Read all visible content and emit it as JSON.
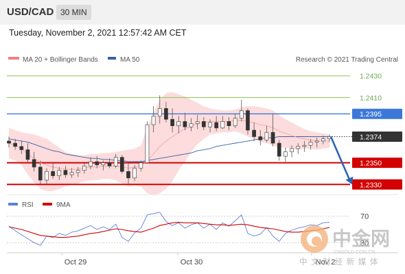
{
  "header": {
    "pair": "USD/CAD",
    "timeframe": "30 MIN"
  },
  "datetime": "Tuesday, November 2, 2021 12:57:42 AM CET",
  "legend": {
    "ma20_bb": {
      "label": "MA 20 + Bollinger Bands",
      "color": "#f08080"
    },
    "ma50": {
      "label": "MA 50",
      "color": "#3b5fa8"
    },
    "source": "Research © 2021 Trading Central"
  },
  "watermark": {
    "text": "中金网",
    "sub": "CNGOLD.COM.CN",
    "tagline": "中 文 财 经 新 媒 体"
  },
  "chart_data": [
    {
      "type": "candlestick",
      "ylim": [
        1.2322,
        1.2438
      ],
      "current_price": 1.2374,
      "levels": [
        {
          "label": "1.2430",
          "value": 1.243,
          "role": "target",
          "color": "#8bc34a",
          "style": "thin"
        },
        {
          "label": "1.2410",
          "value": 1.241,
          "role": "target",
          "color": "#8bc34a",
          "style": "thin"
        },
        {
          "label": "1.2395",
          "value": 1.2395,
          "role": "pivot",
          "color": "#3c78d8",
          "style": "medium"
        },
        {
          "label": "1.2374",
          "value": 1.2374,
          "role": "last",
          "color": "#333333",
          "style": "dotted"
        },
        {
          "label": "1.2350",
          "value": 1.235,
          "role": "support",
          "color": "#d20000",
          "style": "thick"
        },
        {
          "label": "1.2330",
          "value": 1.233,
          "role": "support",
          "color": "#d20000",
          "style": "thick"
        }
      ],
      "x_labels": [
        "Oct 29",
        "Oct 30",
        "Nov 2"
      ],
      "candles": [
        [
          1.237,
          1.2374,
          1.2364,
          1.2368
        ],
        [
          1.2368,
          1.2372,
          1.2362,
          1.2365
        ],
        [
          1.2365,
          1.237,
          1.2358,
          1.2362
        ],
        [
          1.2362,
          1.2368,
          1.235,
          1.2353
        ],
        [
          1.2353,
          1.236,
          1.2342,
          1.2346
        ],
        [
          1.2346,
          1.2352,
          1.233,
          1.2334
        ],
        [
          1.2334,
          1.2345,
          1.233,
          1.2342
        ],
        [
          1.2342,
          1.235,
          1.2335,
          1.2338
        ],
        [
          1.2338,
          1.2346,
          1.2334,
          1.2343
        ],
        [
          1.2343,
          1.2347,
          1.2336,
          1.2339
        ],
        [
          1.2339,
          1.2345,
          1.2336,
          1.2341
        ],
        [
          1.2341,
          1.2346,
          1.2337,
          1.2343
        ],
        [
          1.2343,
          1.235,
          1.234,
          1.2347
        ],
        [
          1.2347,
          1.2355,
          1.2344,
          1.2351
        ],
        [
          1.2351,
          1.2356,
          1.2345,
          1.2348
        ],
        [
          1.2348,
          1.2352,
          1.2343,
          1.235
        ],
        [
          1.235,
          1.2354,
          1.2345,
          1.2347
        ],
        [
          1.2347,
          1.2358,
          1.2345,
          1.2355
        ],
        [
          1.2355,
          1.2357,
          1.234,
          1.2342
        ],
        [
          1.2342,
          1.235,
          1.233,
          1.2336
        ],
        [
          1.2336,
          1.2348,
          1.2333,
          1.2345
        ],
        [
          1.2345,
          1.2352,
          1.2342,
          1.235
        ],
        [
          1.235,
          1.2388,
          1.235,
          1.2385
        ],
        [
          1.2385,
          1.2402,
          1.2378,
          1.2393
        ],
        [
          1.2393,
          1.2412,
          1.2386,
          1.24
        ],
        [
          1.24,
          1.2406,
          1.2387,
          1.239
        ],
        [
          1.239,
          1.24,
          1.2378,
          1.2384
        ],
        [
          1.2384,
          1.2393,
          1.2377,
          1.2388
        ],
        [
          1.2388,
          1.2396,
          1.238,
          1.2383
        ],
        [
          1.2383,
          1.2391,
          1.2379,
          1.2386
        ],
        [
          1.2386,
          1.2394,
          1.2381,
          1.2388
        ],
        [
          1.2388,
          1.2392,
          1.238,
          1.2383
        ],
        [
          1.2383,
          1.239,
          1.2378,
          1.2387
        ],
        [
          1.2387,
          1.2393,
          1.2379,
          1.2382
        ],
        [
          1.2382,
          1.2393,
          1.2381,
          1.2388
        ],
        [
          1.2388,
          1.2392,
          1.238,
          1.2384
        ],
        [
          1.2384,
          1.2395,
          1.2382,
          1.2391
        ],
        [
          1.2391,
          1.2408,
          1.2388,
          1.2398
        ],
        [
          1.2398,
          1.24,
          1.2376,
          1.238
        ],
        [
          1.238,
          1.2387,
          1.237,
          1.2374
        ],
        [
          1.2374,
          1.238,
          1.2366,
          1.2371
        ],
        [
          1.2371,
          1.2384,
          1.2369,
          1.2378
        ],
        [
          1.2378,
          1.2395,
          1.2365,
          1.2368
        ],
        [
          1.2368,
          1.2371,
          1.2352,
          1.2356
        ],
        [
          1.2356,
          1.2364,
          1.2351,
          1.236
        ],
        [
          1.236,
          1.2366,
          1.2355,
          1.2363
        ],
        [
          1.2363,
          1.2368,
          1.2358,
          1.2365
        ],
        [
          1.2365,
          1.237,
          1.236,
          1.2366
        ],
        [
          1.2366,
          1.2372,
          1.2362,
          1.2369
        ],
        [
          1.2369,
          1.2373,
          1.2364,
          1.237
        ],
        [
          1.237,
          1.2375,
          1.2367,
          1.2372
        ],
        [
          1.2372,
          1.2376,
          1.2369,
          1.2374
        ]
      ],
      "ma20": [
        1.2368,
        1.2366,
        1.2363,
        1.2358,
        1.2354,
        1.235,
        1.2348,
        1.2346,
        1.2345,
        1.2344,
        1.2344,
        1.2344,
        1.2345,
        1.2346,
        1.2346,
        1.2347,
        1.2347,
        1.2347,
        1.2346,
        1.2345,
        1.2346,
        1.2347,
        1.2352,
        1.2358,
        1.2365,
        1.237,
        1.2374,
        1.2378,
        1.2381,
        1.2384,
        1.2386,
        1.2387,
        1.2388,
        1.2388,
        1.2388,
        1.2388,
        1.2389,
        1.2389,
        1.2388,
        1.2387,
        1.2385,
        1.2384,
        1.2382,
        1.2379,
        1.2377,
        1.2375,
        1.2373,
        1.2372,
        1.2371,
        1.237,
        1.237,
        1.237
      ],
      "bb_upper": [
        1.2382,
        1.238,
        1.2378,
        1.2377,
        1.2376,
        1.2374,
        1.2372,
        1.2368,
        1.2364,
        1.236,
        1.2358,
        1.2357,
        1.2357,
        1.2358,
        1.2358,
        1.2359,
        1.2359,
        1.236,
        1.2361,
        1.2362,
        1.2363,
        1.2366,
        1.2382,
        1.2396,
        1.2408,
        1.2414,
        1.2415,
        1.2413,
        1.2411,
        1.2408,
        1.2405,
        1.2402,
        1.24,
        1.2399,
        1.2398,
        1.2398,
        1.2399,
        1.2401,
        1.2402,
        1.2402,
        1.2401,
        1.24,
        1.2398,
        1.2394,
        1.239,
        1.2387,
        1.2384,
        1.2381,
        1.2379,
        1.2378,
        1.2377,
        1.2376
      ],
      "bb_lower": [
        1.2354,
        1.2352,
        1.2348,
        1.2339,
        1.2332,
        1.2326,
        1.2324,
        1.2324,
        1.2326,
        1.2328,
        1.233,
        1.2331,
        1.2333,
        1.2334,
        1.2334,
        1.2335,
        1.2335,
        1.2334,
        1.2331,
        1.2328,
        1.2329,
        1.2328,
        1.2322,
        1.232,
        1.2322,
        1.2326,
        1.2333,
        1.2343,
        1.2351,
        1.236,
        1.2367,
        1.2372,
        1.2376,
        1.2377,
        1.2378,
        1.2378,
        1.2379,
        1.2377,
        1.2374,
        1.2372,
        1.2369,
        1.2368,
        1.2366,
        1.2364,
        1.2364,
        1.2363,
        1.2362,
        1.2363,
        1.2363,
        1.2362,
        1.2363,
        1.2364
      ],
      "ma50": [
        1.2372,
        1.2371,
        1.237,
        1.2369,
        1.2367,
        1.2365,
        1.2363,
        1.2361,
        1.236,
        1.2358,
        1.2357,
        1.2356,
        1.2355,
        1.2354,
        1.2354,
        1.2353,
        1.2353,
        1.2352,
        1.2352,
        1.2351,
        1.2351,
        1.2351,
        1.2352,
        1.2353,
        1.2354,
        1.2355,
        1.2356,
        1.2357,
        1.2358,
        1.2359,
        1.2361,
        1.2362,
        1.2363,
        1.2365,
        1.2366,
        1.2367,
        1.2368,
        1.2369,
        1.237,
        1.2371,
        1.2372,
        1.2373,
        1.2373,
        1.2374,
        1.2374,
        1.2374,
        1.2374,
        1.2374,
        1.2374,
        1.2374,
        1.2374,
        1.2374
      ],
      "forecast": [
        1.2374,
        1.233
      ]
    },
    {
      "type": "line",
      "legend": [
        {
          "label": "RSI",
          "color": "#5b7fd6"
        },
        {
          "label": "9MA",
          "color": "#d20000"
        }
      ],
      "ylim": [
        20,
        80
      ],
      "tick_labels": [
        "70",
        "30"
      ],
      "series": [
        {
          "name": "RSI",
          "values": [
            55,
            48,
            42,
            36,
            30,
            26,
            40,
            38,
            44,
            41,
            46,
            48,
            52,
            56,
            50,
            54,
            50,
            58,
            38,
            32,
            45,
            52,
            72,
            74,
            76,
            62,
            56,
            60,
            52,
            57,
            60,
            52,
            58,
            50,
            60,
            55,
            63,
            72,
            44,
            40,
            43,
            53,
            40,
            32,
            44,
            49,
            52,
            54,
            57,
            56,
            60,
            61
          ]
        },
        {
          "name": "9MA",
          "values": [
            54,
            52,
            50,
            47,
            44,
            41,
            40,
            39,
            38,
            38,
            39,
            40,
            42,
            44,
            45,
            47,
            49,
            51,
            50,
            48,
            47,
            46,
            49,
            52,
            56,
            58,
            60,
            61,
            60,
            60,
            60,
            59,
            58,
            57,
            57,
            56,
            57,
            58,
            57,
            55,
            53,
            52,
            51,
            49,
            47,
            46,
            46,
            47,
            48,
            49,
            51,
            53
          ]
        }
      ]
    }
  ]
}
